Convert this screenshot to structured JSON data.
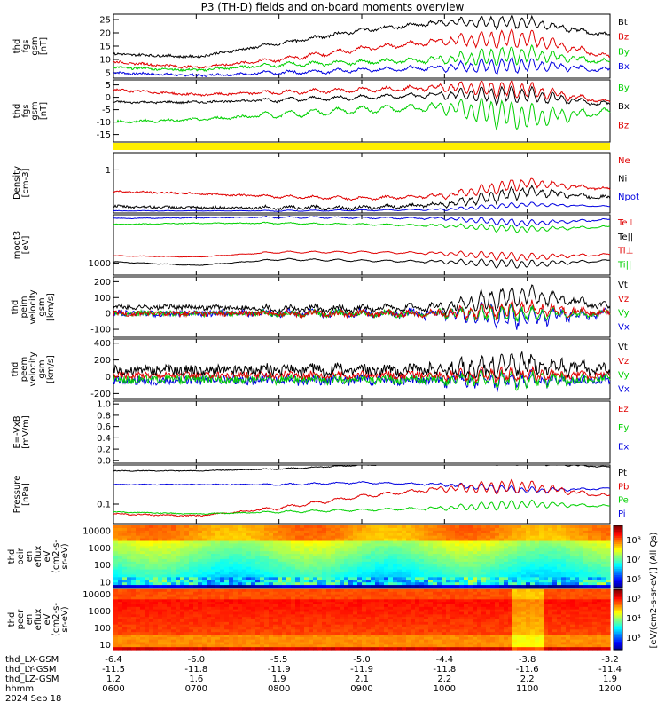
{
  "title": "P3 (TH-D) fields and on-board moments overview",
  "date": "2024 Sep 18",
  "colors": {
    "black": "#000000",
    "red": "#e00000",
    "green": "#00d000",
    "blue": "#0000e0",
    "yellow": "#ffee00"
  },
  "panels": [
    {
      "label": [
        "thd",
        "fgs",
        "gsm",
        "[nT]"
      ],
      "ticks": [
        "25",
        "20",
        "15",
        "10",
        "5"
      ],
      "tickvals": [
        25,
        20,
        15,
        10,
        5
      ],
      "ylim": [
        3,
        27
      ],
      "legend": [
        {
          "text": "Bt",
          "color": "black"
        },
        {
          "text": "Bz",
          "color": "red"
        },
        {
          "text": "By",
          "color": "green"
        },
        {
          "text": "Bx",
          "color": "blue"
        }
      ]
    },
    {
      "label": [
        "thd",
        "fgs",
        "gsm",
        "[nT]"
      ],
      "ticks": [
        "5",
        "0",
        "-5",
        "-10",
        "-15"
      ],
      "tickvals": [
        5,
        0,
        -5,
        -10,
        -15
      ],
      "ylim": [
        -18,
        7
      ],
      "legend": [
        {
          "text": "By",
          "color": "green"
        },
        {
          "text": "Bx",
          "color": "black"
        },
        {
          "text": "Bz",
          "color": "red"
        }
      ]
    },
    {
      "label": [
        "Density",
        "[cm-3]"
      ],
      "ticks": [
        "1"
      ],
      "tickvals": [
        1
      ],
      "ylim": [
        0,
        1.4
      ],
      "legend": [
        {
          "text": "Ne",
          "color": "red"
        },
        {
          "text": "Ni",
          "color": "black"
        },
        {
          "text": "Npot",
          "color": "blue"
        }
      ]
    },
    {
      "label": [
        "moqt3",
        "[eV]"
      ],
      "ticks": [
        "1000"
      ],
      "tickvals": [
        1000
      ],
      "ylim": [
        0,
        5000
      ],
      "legend": [
        {
          "text": "Te⊥",
          "color": "red"
        },
        {
          "text": "Te||",
          "color": "black"
        },
        {
          "text": "Ti⊥",
          "color": "red"
        },
        {
          "text": "Ti||",
          "color": "green"
        }
      ]
    },
    {
      "label": [
        "thd",
        "peim",
        "velocity",
        "gsm",
        "[km/s]"
      ],
      "ticks": [
        "200",
        "100",
        "0",
        "-100"
      ],
      "tickvals": [
        200,
        100,
        0,
        -100
      ],
      "ylim": [
        -150,
        230
      ],
      "legend": [
        {
          "text": "Vt",
          "color": "black"
        },
        {
          "text": "Vz",
          "color": "red"
        },
        {
          "text": "Vy",
          "color": "green"
        },
        {
          "text": "Vx",
          "color": "blue"
        }
      ]
    },
    {
      "label": [
        "thd",
        "peem",
        "velocity",
        "gsm",
        "[km/s]"
      ],
      "ticks": [
        "400",
        "200",
        "0",
        "-200"
      ],
      "tickvals": [
        400,
        200,
        0,
        -200
      ],
      "ylim": [
        -270,
        450
      ],
      "legend": [
        {
          "text": "Vt",
          "color": "black"
        },
        {
          "text": "Vz",
          "color": "red"
        },
        {
          "text": "Vy",
          "color": "green"
        },
        {
          "text": "Vx",
          "color": "blue"
        }
      ]
    },
    {
      "label": [
        "E=-VxB",
        "[mV/m]"
      ],
      "ticks": [
        "1.0",
        "0.8",
        "0.6",
        "0.4",
        "0.2",
        "0.0"
      ],
      "tickvals": [
        1.0,
        0.8,
        0.6,
        0.4,
        0.2,
        0.0
      ],
      "ylim": [
        -0.05,
        1.05
      ],
      "legend": [
        {
          "text": "Ez",
          "color": "red"
        },
        {
          "text": "Ey",
          "color": "green"
        },
        {
          "text": "Ex",
          "color": "blue"
        }
      ]
    },
    {
      "label": [
        "Pressure",
        "[nPa]"
      ],
      "ticks": [
        "0.1"
      ],
      "tickvals": [
        0.1
      ],
      "ylim": [
        0,
        0.3
      ],
      "legend": [
        {
          "text": "Pt",
          "color": "black"
        },
        {
          "text": "Pb",
          "color": "red"
        },
        {
          "text": "Pe",
          "color": "green"
        },
        {
          "text": "Pi",
          "color": "blue"
        }
      ]
    },
    {
      "label": [
        "thd",
        "peir",
        "en",
        "eflux",
        "eV",
        "(cm2-s-",
        "sr-eV)"
      ],
      "ticks": [
        "10000",
        "1000",
        "100",
        "10"
      ],
      "tickvals": [
        10000,
        1000,
        100,
        10
      ],
      "ylim": [
        5,
        20000
      ]
    },
    {
      "label": [
        "thd",
        "peer",
        "en",
        "eflux",
        "eV",
        "(cm2-s-",
        "sr-eV)"
      ],
      "ticks": [
        "10000",
        "1000",
        "100",
        "10"
      ],
      "tickvals": [
        10000,
        1000,
        100,
        10
      ],
      "ylim": [
        5,
        20000
      ]
    }
  ],
  "colorbar": {
    "ticks": [
      "10⁸",
      "10⁷",
      "10⁶",
      "10⁵",
      "10⁴",
      "10³"
    ],
    "label": "[eV/(cm2-s-sr-eV)] (All Qs)"
  },
  "xaxis": {
    "rows": [
      {
        "name": "thd_LX-GSM",
        "values": [
          "-6.4",
          "-6.0",
          "-5.5",
          "-5.0",
          "-4.4",
          "-3.8",
          "-3.2"
        ]
      },
      {
        "name": "thd_LY-GSM",
        "values": [
          "-11.5",
          "-11.8",
          "-11.9",
          "-11.9",
          "-11.8",
          "-11.6",
          "-11.4"
        ]
      },
      {
        "name": "thd_LZ-GSM",
        "values": [
          "1.2",
          "1.6",
          "1.9",
          "2.1",
          "2.2",
          "2.2",
          "1.9"
        ]
      },
      {
        "name": "hhmm",
        "values": [
          "0600",
          "0700",
          "0800",
          "0900",
          "1000",
          "1100",
          "1200"
        ]
      }
    ]
  },
  "chart_data": {
    "type": "line",
    "title": "P3 (TH-D) fields and on-board moments overview",
    "x": [
      "0600",
      "0700",
      "0800",
      "0900",
      "1000",
      "1100",
      "1200"
    ],
    "series": [
      {
        "name": "Bt",
        "values": [
          12,
          11,
          16,
          21,
          24,
          24,
          19
        ]
      },
      {
        "name": "Bz",
        "values": [
          9,
          7,
          10,
          14,
          17,
          18,
          11
        ]
      },
      {
        "name": "By",
        "values": [
          7,
          6,
          8,
          9,
          10,
          12,
          9
        ]
      },
      {
        "name": "Bx",
        "values": [
          5,
          4,
          5,
          6,
          7,
          8,
          6
        ]
      },
      {
        "name": "Ne",
        "values": [
          0.5,
          0.45,
          0.38,
          0.34,
          0.4,
          0.7,
          0.55
        ]
      },
      {
        "name": "Ni",
        "values": [
          0.15,
          0.12,
          0.12,
          0.12,
          0.2,
          0.5,
          0.35
        ]
      },
      {
        "name": "Pt",
        "values": [
          0.27,
          0.27,
          0.28,
          0.3,
          0.31,
          0.31,
          0.29
        ]
      },
      {
        "name": "Pb",
        "values": [
          0.05,
          0.04,
          0.08,
          0.14,
          0.18,
          0.19,
          0.14
        ]
      },
      {
        "name": "Pe",
        "values": [
          0.06,
          0.05,
          0.06,
          0.07,
          0.08,
          0.1,
          0.09
        ]
      },
      {
        "name": "Pi",
        "values": [
          0.2,
          0.2,
          0.2,
          0.21,
          0.2,
          0.17,
          0.18
        ]
      }
    ],
    "ylabel": "",
    "xlabel": ""
  }
}
